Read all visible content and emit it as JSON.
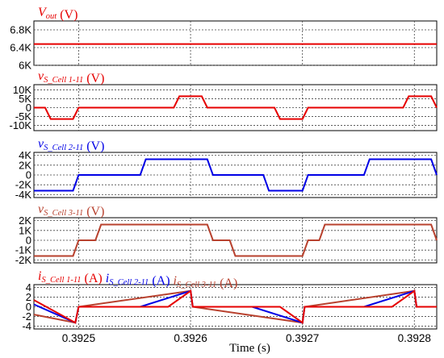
{
  "xaxis": {
    "label": "Time (s)",
    "range": [
      0.39246,
      0.39282
    ],
    "ticks": [
      0.3925,
      0.3926,
      0.3927,
      0.3928
    ],
    "tick_labels": [
      "0.3925",
      "0.3926",
      "0.3927",
      "0.3928"
    ]
  },
  "colors": {
    "red": "#e60000",
    "blue": "#0000e6",
    "brown": "#b8412e",
    "grid": "#444444"
  },
  "chart_data": [
    {
      "type": "line",
      "title_parts": [
        {
          "t": "V",
          "it": true,
          "c": "red"
        },
        {
          "t": "out",
          "it": true,
          "sub": true,
          "c": "red"
        },
        {
          "t": " (V)",
          "c": "red"
        }
      ],
      "ylim": [
        6000,
        7000
      ],
      "yticks": [
        6000,
        6400,
        6800
      ],
      "ytick_labels": [
        "6K",
        "6.4K",
        "6.8K"
      ],
      "series": [
        {
          "color": "red",
          "points": [
            [
              0.39246,
              6480
            ],
            [
              0.39282,
              6480
            ]
          ]
        }
      ]
    },
    {
      "type": "line",
      "title_parts": [
        {
          "t": "v",
          "it": true,
          "c": "red"
        },
        {
          "t": "S_Cell 1-11",
          "it": true,
          "sub": true,
          "c": "red"
        },
        {
          "t": " (V)",
          "c": "red"
        }
      ],
      "ylim": [
        -13000,
        13000
      ],
      "yticks": [
        -10000,
        -5000,
        0,
        5000,
        10000
      ],
      "ytick_labels": [
        "-10K",
        "-5K",
        "0",
        "5K",
        "10K"
      ],
      "series": [
        {
          "color": "red",
          "points": [
            [
              0.39246,
              0
            ],
            [
              0.39247,
              0
            ],
            [
              0.392475,
              -6450
            ],
            [
              0.392495,
              -6450
            ],
            [
              0.3925,
              0
            ],
            [
              0.392585,
              0
            ],
            [
              0.39259,
              6450
            ],
            [
              0.39261,
              6450
            ],
            [
              0.392615,
              0
            ],
            [
              0.392675,
              0
            ],
            [
              0.39268,
              -6450
            ],
            [
              0.3927,
              -6450
            ],
            [
              0.392705,
              0
            ],
            [
              0.39279,
              0
            ],
            [
              0.392795,
              6450
            ],
            [
              0.392815,
              6450
            ],
            [
              0.39282,
              0
            ]
          ]
        }
      ]
    },
    {
      "type": "line",
      "title_parts": [
        {
          "t": "v",
          "it": true,
          "c": "blue"
        },
        {
          "t": "S_Cell 2-11",
          "it": true,
          "sub": true,
          "c": "blue"
        },
        {
          "t": " (V)",
          "c": "blue"
        }
      ],
      "ylim": [
        -4600,
        4600
      ],
      "yticks": [
        -4000,
        -2000,
        0,
        2000,
        4000
      ],
      "ytick_labels": [
        "-4K",
        "-2K",
        "0",
        "2K",
        "4K"
      ],
      "series": [
        {
          "color": "blue",
          "points": [
            [
              0.39246,
              -3200
            ],
            [
              0.392495,
              -3200
            ],
            [
              0.3925,
              0
            ],
            [
              0.392555,
              0
            ],
            [
              0.39256,
              3200
            ],
            [
              0.392615,
              3200
            ],
            [
              0.39262,
              0
            ],
            [
              0.392665,
              0
            ],
            [
              0.39267,
              -3200
            ],
            [
              0.3927,
              -3200
            ],
            [
              0.392705,
              0
            ],
            [
              0.392755,
              0
            ],
            [
              0.39276,
              3200
            ],
            [
              0.392815,
              3200
            ],
            [
              0.39282,
              0
            ]
          ]
        }
      ]
    },
    {
      "type": "line",
      "title_parts": [
        {
          "t": "v",
          "it": true,
          "c": "brown"
        },
        {
          "t": "S_Cell 3-11",
          "it": true,
          "sub": true,
          "c": "brown"
        },
        {
          "t": " (V)",
          "c": "brown"
        }
      ],
      "ylim": [
        -2300,
        2300
      ],
      "yticks": [
        -2000,
        -1000,
        0,
        1000,
        2000
      ],
      "ytick_labels": [
        "-2K",
        "-1K",
        "0",
        "1K",
        "2K"
      ],
      "series": [
        {
          "color": "brown",
          "points": [
            [
              0.39246,
              -1600
            ],
            [
              0.392495,
              -1600
            ],
            [
              0.3925,
              0
            ],
            [
              0.392515,
              0
            ],
            [
              0.39252,
              1600
            ],
            [
              0.392615,
              1600
            ],
            [
              0.39262,
              0
            ],
            [
              0.392635,
              0
            ],
            [
              0.39264,
              -1600
            ],
            [
              0.3927,
              -1600
            ],
            [
              0.392705,
              0
            ],
            [
              0.392715,
              0
            ],
            [
              0.39272,
              1600
            ],
            [
              0.392815,
              1600
            ],
            [
              0.39282,
              0
            ]
          ]
        }
      ]
    },
    {
      "type": "line",
      "title_parts": [
        {
          "t": "i",
          "it": true,
          "c": "red"
        },
        {
          "t": "S_Cell 1-11",
          "it": true,
          "sub": true,
          "c": "red"
        },
        {
          "t": " (A)",
          "c": "red"
        },
        {
          "t": "   ",
          "c": "red"
        },
        {
          "t": "i",
          "it": true,
          "c": "blue"
        },
        {
          "t": "S_Cell 2-11",
          "it": true,
          "sub": true,
          "c": "blue"
        },
        {
          "t": " (A)",
          "c": "blue"
        },
        {
          "t": "   ",
          "c": "red"
        },
        {
          "t": "i",
          "it": true,
          "c": "brown"
        },
        {
          "t": "S_Cell 3-11",
          "it": true,
          "sub": true,
          "c": "brown"
        },
        {
          "t": " (A)",
          "c": "brown"
        }
      ],
      "ylim": [
        -4.6,
        4.6
      ],
      "yticks": [
        -4,
        -2,
        0,
        2,
        4
      ],
      "ytick_labels": [
        "-4",
        "-2",
        "0",
        "2",
        "4"
      ],
      "series": [
        {
          "color": "brown",
          "points": [
            [
              0.39246,
              -1.6
            ],
            [
              0.392497,
              -3.3
            ],
            [
              0.3925,
              0
            ],
            [
              0.3926,
              3.3
            ],
            [
              0.392602,
              0
            ],
            [
              0.3927,
              -3.3
            ],
            [
              0.392702,
              0
            ],
            [
              0.3928,
              3.3
            ],
            [
              0.392802,
              0
            ],
            [
              0.39282,
              0
            ]
          ]
        },
        {
          "color": "blue",
          "points": [
            [
              0.39246,
              0.5
            ],
            [
              0.392497,
              -3.3
            ],
            [
              0.3925,
              0
            ],
            [
              0.392555,
              0
            ],
            [
              0.3926,
              3.3
            ],
            [
              0.392602,
              0
            ],
            [
              0.392655,
              0
            ],
            [
              0.3927,
              -3.3
            ],
            [
              0.392702,
              0
            ],
            [
              0.392755,
              0
            ],
            [
              0.3928,
              3.3
            ],
            [
              0.392802,
              0
            ],
            [
              0.39282,
              0
            ]
          ]
        },
        {
          "color": "red",
          "points": [
            [
              0.39246,
              1.4
            ],
            [
              0.392497,
              -3.3
            ],
            [
              0.3925,
              0
            ],
            [
              0.39258,
              0
            ],
            [
              0.3926,
              3.3
            ],
            [
              0.392602,
              0
            ],
            [
              0.39268,
              0
            ],
            [
              0.3927,
              -3.3
            ],
            [
              0.392702,
              0
            ],
            [
              0.39278,
              0
            ],
            [
              0.3928,
              3.3
            ],
            [
              0.392802,
              0
            ],
            [
              0.39282,
              0
            ]
          ]
        }
      ]
    }
  ]
}
